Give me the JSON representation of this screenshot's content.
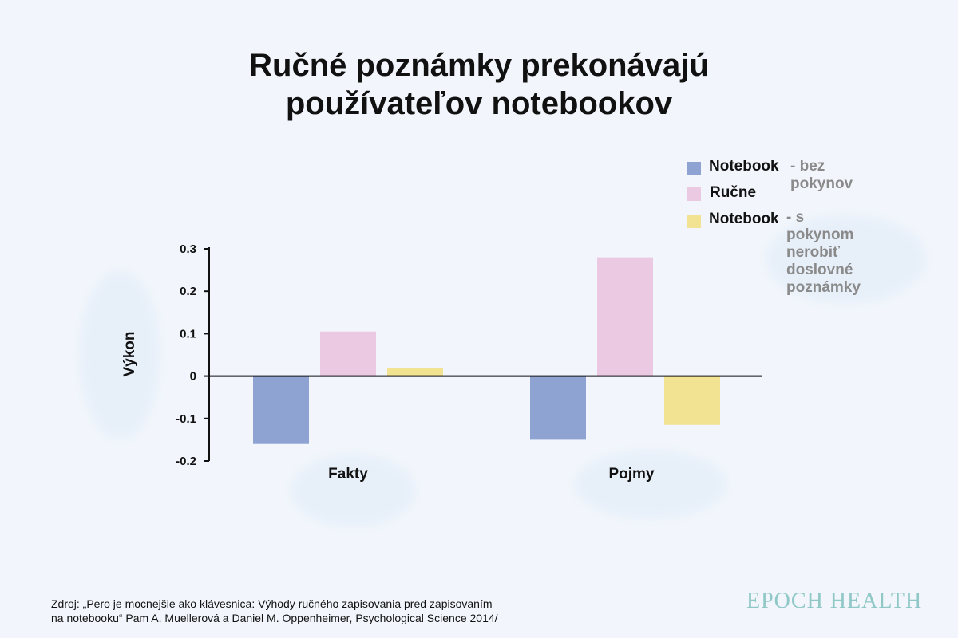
{
  "title": {
    "line1": "Ručné poznámky prekonávajú",
    "line2": "používateľov notebookov"
  },
  "legend": [
    {
      "name": "Notebook",
      "note": "- bez pokynov",
      "color": "#8fa3d3"
    },
    {
      "name": "Ručne",
      "note": "",
      "color": "#ecc9e2"
    },
    {
      "name": "Notebook",
      "note": "- s pokynom\nnerobiť doslovné\npoznámky",
      "color": "#f2e393"
    }
  ],
  "chart_data": {
    "type": "bar",
    "categories": [
      "Fakty",
      "Pojmy"
    ],
    "series": [
      {
        "name": "Notebook - bez pokynov",
        "values": [
          -0.16,
          -0.15
        ],
        "color": "#8fa3d3"
      },
      {
        "name": "Ručne",
        "values": [
          0.105,
          0.28
        ],
        "color": "#ecc9e2"
      },
      {
        "name": "Notebook - s pokynom nerobiť doslovné poznámky",
        "values": [
          0.02,
          -0.115
        ],
        "color": "#f2e393"
      }
    ],
    "ylabel": "Výkon",
    "xlabel": "",
    "ylim": [
      -0.2,
      0.3
    ],
    "yticks": [
      "0.3",
      "0.2",
      "0.1",
      "0",
      "-0.1",
      "-0.2"
    ],
    "ytick_values": [
      0.3,
      0.2,
      0.1,
      0,
      -0.1,
      -0.2
    ],
    "grid": false,
    "legend_position": "top-right"
  },
  "source": {
    "line1": "Zdroj: „Pero je mocnejšie ako klávesnica: Výhody ručného zapisovania pred zapisovaním",
    "line2": "na notebooku“ Pam A. Muellerová a Daniel M. Oppenheimer, Psychological Science 2014/"
  },
  "brand": "EPOCH HEALTH"
}
